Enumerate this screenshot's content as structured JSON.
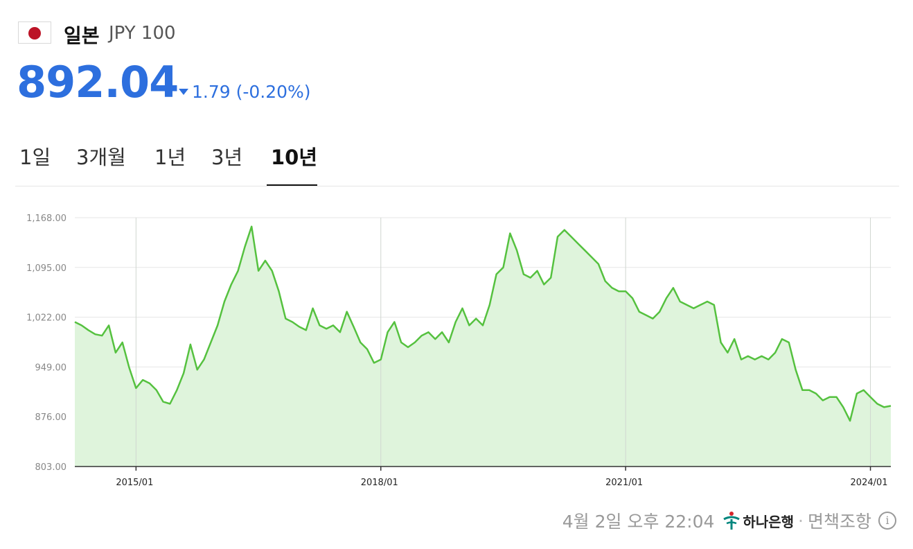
{
  "header": {
    "country": "일본",
    "code": "JPY 100",
    "price": "892.04",
    "change": "1.79 (-0.20%)",
    "change_color": "#2d6fde"
  },
  "tabs": [
    "1일",
    "3개월",
    "1년",
    "3년",
    "10년"
  ],
  "active_tab": "10년",
  "footer": {
    "timestamp": "4월 2일 오후 22:04",
    "bank": "하나은행",
    "disclaimer": "면책조항"
  },
  "chart_data": {
    "type": "area",
    "line_color": "#55c13f",
    "fill_color": "#dff4dc",
    "y_ticks": [
      "1,168.00",
      "1,095.00",
      "1,022.00",
      "949.00",
      "876.00",
      "803.00"
    ],
    "ylim": [
      803,
      1168
    ],
    "x_ticks": [
      "2015/01",
      "2018/01",
      "2021/01",
      "2024/01"
    ],
    "x_range": [
      "2014/04",
      "2024/04"
    ],
    "points": [
      [
        "2014-04",
        1015
      ],
      [
        "2014-05",
        1010
      ],
      [
        "2014-06",
        1003
      ],
      [
        "2014-07",
        997
      ],
      [
        "2014-08",
        995
      ],
      [
        "2014-09",
        1010
      ],
      [
        "2014-10",
        970
      ],
      [
        "2014-11",
        985
      ],
      [
        "2014-12",
        948
      ],
      [
        "2015-01",
        918
      ],
      [
        "2015-02",
        930
      ],
      [
        "2015-03",
        925
      ],
      [
        "2015-04",
        915
      ],
      [
        "2015-05",
        898
      ],
      [
        "2015-06",
        895
      ],
      [
        "2015-07",
        915
      ],
      [
        "2015-08",
        940
      ],
      [
        "2015-09",
        982
      ],
      [
        "2015-10",
        945
      ],
      [
        "2015-11",
        960
      ],
      [
        "2015-12",
        985
      ],
      [
        "2016-01",
        1010
      ],
      [
        "2016-02",
        1045
      ],
      [
        "2016-03",
        1070
      ],
      [
        "2016-04",
        1090
      ],
      [
        "2016-05",
        1125
      ],
      [
        "2016-06",
        1155
      ],
      [
        "2016-07",
        1090
      ],
      [
        "2016-08",
        1105
      ],
      [
        "2016-09",
        1090
      ],
      [
        "2016-10",
        1060
      ],
      [
        "2016-11",
        1020
      ],
      [
        "2016-12",
        1015
      ],
      [
        "2017-01",
        1008
      ],
      [
        "2017-02",
        1003
      ],
      [
        "2017-03",
        1035
      ],
      [
        "2017-04",
        1010
      ],
      [
        "2017-05",
        1005
      ],
      [
        "2017-06",
        1010
      ],
      [
        "2017-07",
        1000
      ],
      [
        "2017-08",
        1030
      ],
      [
        "2017-09",
        1008
      ],
      [
        "2017-10",
        985
      ],
      [
        "2017-11",
        975
      ],
      [
        "2017-12",
        955
      ],
      [
        "2018-01",
        960
      ],
      [
        "2018-02",
        1000
      ],
      [
        "2018-03",
        1015
      ],
      [
        "2018-04",
        985
      ],
      [
        "2018-05",
        978
      ],
      [
        "2018-06",
        985
      ],
      [
        "2018-07",
        995
      ],
      [
        "2018-08",
        1000
      ],
      [
        "2018-09",
        990
      ],
      [
        "2018-10",
        1000
      ],
      [
        "2018-11",
        985
      ],
      [
        "2018-12",
        1015
      ],
      [
        "2019-01",
        1035
      ],
      [
        "2019-02",
        1010
      ],
      [
        "2019-03",
        1020
      ],
      [
        "2019-04",
        1010
      ],
      [
        "2019-05",
        1040
      ],
      [
        "2019-06",
        1085
      ],
      [
        "2019-07",
        1095
      ],
      [
        "2019-08",
        1145
      ],
      [
        "2019-09",
        1120
      ],
      [
        "2019-10",
        1085
      ],
      [
        "2019-11",
        1080
      ],
      [
        "2019-12",
        1090
      ],
      [
        "2020-01",
        1070
      ],
      [
        "2020-02",
        1080
      ],
      [
        "2020-03",
        1140
      ],
      [
        "2020-04",
        1150
      ],
      [
        "2020-05",
        1140
      ],
      [
        "2020-06",
        1130
      ],
      [
        "2020-07",
        1120
      ],
      [
        "2020-08",
        1110
      ],
      [
        "2020-09",
        1100
      ],
      [
        "2020-10",
        1075
      ],
      [
        "2020-11",
        1065
      ],
      [
        "2020-12",
        1060
      ],
      [
        "2021-01",
        1060
      ],
      [
        "2021-02",
        1050
      ],
      [
        "2021-03",
        1030
      ],
      [
        "2021-04",
        1025
      ],
      [
        "2021-05",
        1020
      ],
      [
        "2021-06",
        1030
      ],
      [
        "2021-07",
        1050
      ],
      [
        "2021-08",
        1065
      ],
      [
        "2021-09",
        1045
      ],
      [
        "2021-10",
        1040
      ],
      [
        "2021-11",
        1035
      ],
      [
        "2021-12",
        1040
      ],
      [
        "2022-01",
        1045
      ],
      [
        "2022-02",
        1040
      ],
      [
        "2022-03",
        985
      ],
      [
        "2022-04",
        970
      ],
      [
        "2022-05",
        990
      ],
      [
        "2022-06",
        960
      ],
      [
        "2022-07",
        965
      ],
      [
        "2022-08",
        960
      ],
      [
        "2022-09",
        965
      ],
      [
        "2022-10",
        960
      ],
      [
        "2022-11",
        970
      ],
      [
        "2022-12",
        990
      ],
      [
        "2023-01",
        985
      ],
      [
        "2023-02",
        945
      ],
      [
        "2023-03",
        915
      ],
      [
        "2023-04",
        915
      ],
      [
        "2023-05",
        910
      ],
      [
        "2023-06",
        900
      ],
      [
        "2023-07",
        905
      ],
      [
        "2023-08",
        905
      ],
      [
        "2023-09",
        890
      ],
      [
        "2023-10",
        870
      ],
      [
        "2023-11",
        910
      ],
      [
        "2023-12",
        915
      ],
      [
        "2024-01",
        905
      ],
      [
        "2024-02",
        895
      ],
      [
        "2024-03",
        890
      ],
      [
        "2024-04",
        892
      ]
    ]
  }
}
